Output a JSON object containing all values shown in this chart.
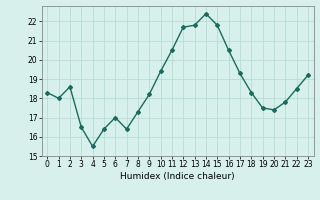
{
  "x": [
    0,
    1,
    2,
    3,
    4,
    5,
    6,
    7,
    8,
    9,
    10,
    11,
    12,
    13,
    14,
    15,
    16,
    17,
    18,
    19,
    20,
    21,
    22,
    23
  ],
  "y": [
    18.3,
    18.0,
    18.6,
    16.5,
    15.5,
    16.4,
    17.0,
    16.4,
    17.3,
    18.2,
    19.4,
    20.5,
    21.7,
    21.8,
    22.4,
    21.8,
    20.5,
    19.3,
    18.3,
    17.5,
    17.4,
    17.8,
    18.5,
    19.2
  ],
  "line_color": "#1a6b5e",
  "marker": "D",
  "marker_size": 2,
  "linewidth": 1.0,
  "xlabel": "Humidex (Indice chaleur)",
  "xlim": [
    -0.5,
    23.5
  ],
  "ylim": [
    15,
    22.8
  ],
  "yticks": [
    15,
    16,
    17,
    18,
    19,
    20,
    21,
    22
  ],
  "xticks": [
    0,
    1,
    2,
    3,
    4,
    5,
    6,
    7,
    8,
    9,
    10,
    11,
    12,
    13,
    14,
    15,
    16,
    17,
    18,
    19,
    20,
    21,
    22,
    23
  ],
  "grid_color": "#b0d8d0",
  "bg_color": "#d8f0ec",
  "label_fontsize": 6.5,
  "tick_fontsize": 5.5
}
